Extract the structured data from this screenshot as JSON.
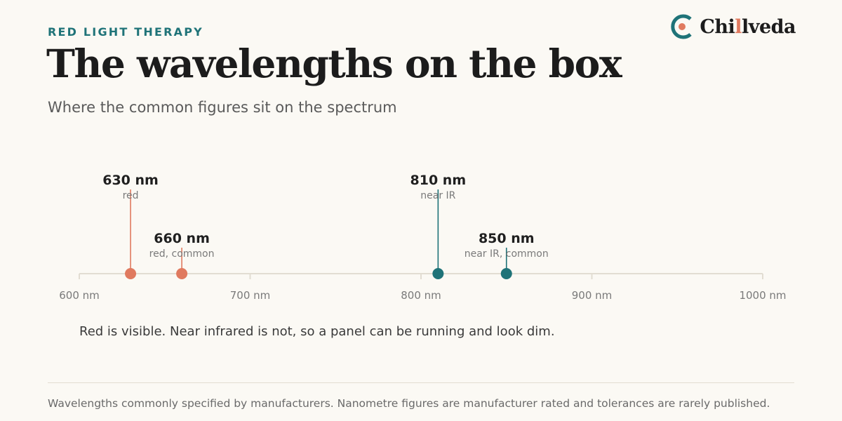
{
  "header": {
    "eyebrow": "RED LIGHT THERAPY",
    "title": "The wavelengths on the box",
    "subtitle": "Where the common figures sit on the spectrum"
  },
  "brand": {
    "name_start": "Chi",
    "name_accent": "l",
    "name_end": "lveda",
    "icon": "chillveda-logo-icon"
  },
  "colors": {
    "red": "#e07a5f",
    "teal": "#1f7378",
    "axis": "#e2ddd2"
  },
  "chart_data": {
    "type": "scatter",
    "xlim": [
      600,
      1000
    ],
    "x_ticks": [
      {
        "value": 600,
        "label": "600 nm"
      },
      {
        "value": 700,
        "label": "700 nm"
      },
      {
        "value": 800,
        "label": "800 nm"
      },
      {
        "value": 900,
        "label": "900 nm"
      },
      {
        "value": 1000,
        "label": "1000 nm"
      }
    ],
    "points": [
      {
        "x": 630,
        "label": "630 nm",
        "sublabel": "red",
        "group": "red",
        "tier": "high"
      },
      {
        "x": 660,
        "label": "660 nm",
        "sublabel": "red, common",
        "group": "red",
        "tier": "low"
      },
      {
        "x": 810,
        "label": "810 nm",
        "sublabel": "near IR",
        "group": "nir",
        "tier": "high"
      },
      {
        "x": 850,
        "label": "850 nm",
        "sublabel": "near IR, common",
        "group": "nir",
        "tier": "low"
      }
    ]
  },
  "note": "Red is visible. Near infrared is not, so a panel can be running and look dim.",
  "footnote": "Wavelengths commonly specified by manufacturers. Nanometre figures are manufacturer rated and tolerances are rarely published."
}
